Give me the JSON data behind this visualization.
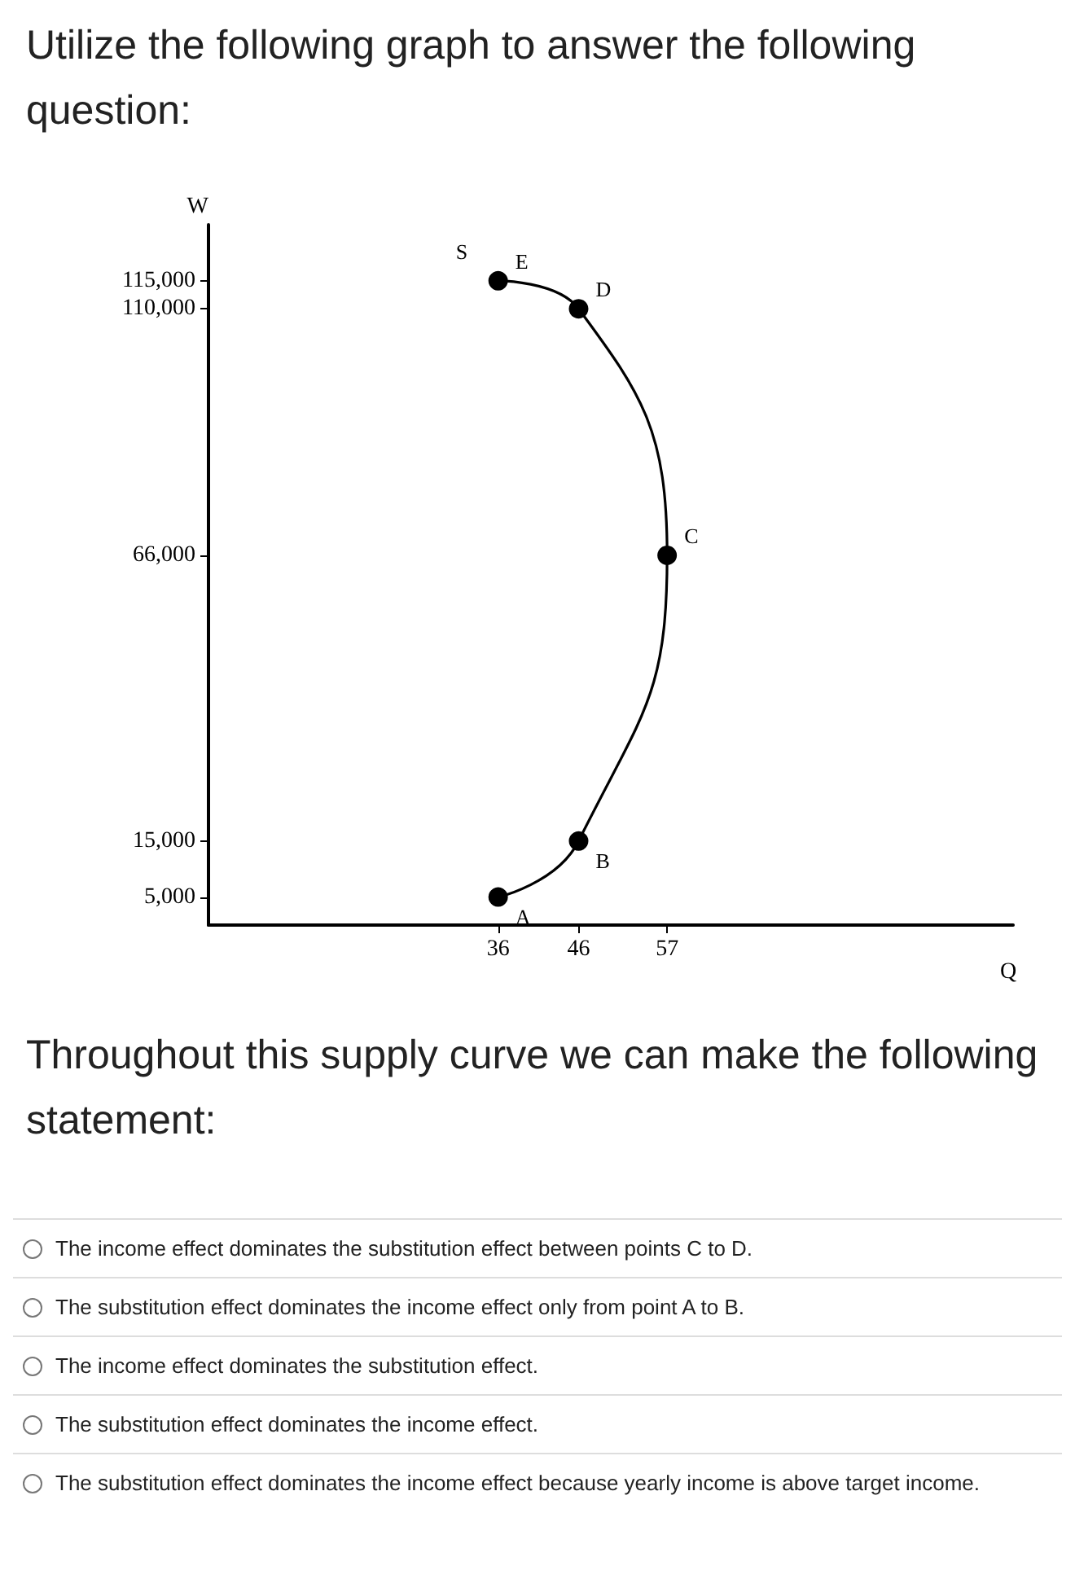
{
  "chart_data": {
    "type": "line",
    "title": "Utilize the following graph to answer the following question:",
    "xlabel": "Q",
    "ylabel": "W",
    "x": [
      36,
      46,
      57,
      46,
      36
    ],
    "series": [
      {
        "name": "S",
        "color": "#000000",
        "values": [
          5000,
          15000,
          66000,
          110000,
          115000
        ]
      }
    ],
    "xlim": [
      0,
      100
    ],
    "ylim": [
      0,
      125000
    ],
    "xticks": [
      36,
      46,
      57
    ],
    "yticks": [
      {
        "value": 5000,
        "label": "5,000"
      },
      {
        "value": 15000,
        "label": "15,000"
      },
      {
        "value": 66000,
        "label": "66,000"
      },
      {
        "value": 110000,
        "label": "110,000"
      },
      {
        "value": 115000,
        "label": "115,000"
      }
    ],
    "grid": false,
    "legend": false,
    "marker": "circle",
    "line_style": "solid",
    "annotations": [
      "Throughout this supply curve we can make the following statement:",
      "The income effect dominates the substitution effect between points C to D.",
      "The substitution effect dominates the income effect only from point A to B.",
      "The income effect dominates the substitution effect.",
      "The substitution effect dominates the income effect.",
      "The substitution effect dominates the income effect because yearly income is above target income.",
      {
        "text": "A",
        "x": 36,
        "y": 5000
      },
      {
        "text": "B",
        "x": 46,
        "y": 15000
      },
      {
        "text": "C",
        "x": 57,
        "y": 66000
      },
      {
        "text": "D",
        "x": 46,
        "y": 110000
      },
      {
        "text": "E",
        "x": 36,
        "y": 115000
      }
    ]
  }
}
